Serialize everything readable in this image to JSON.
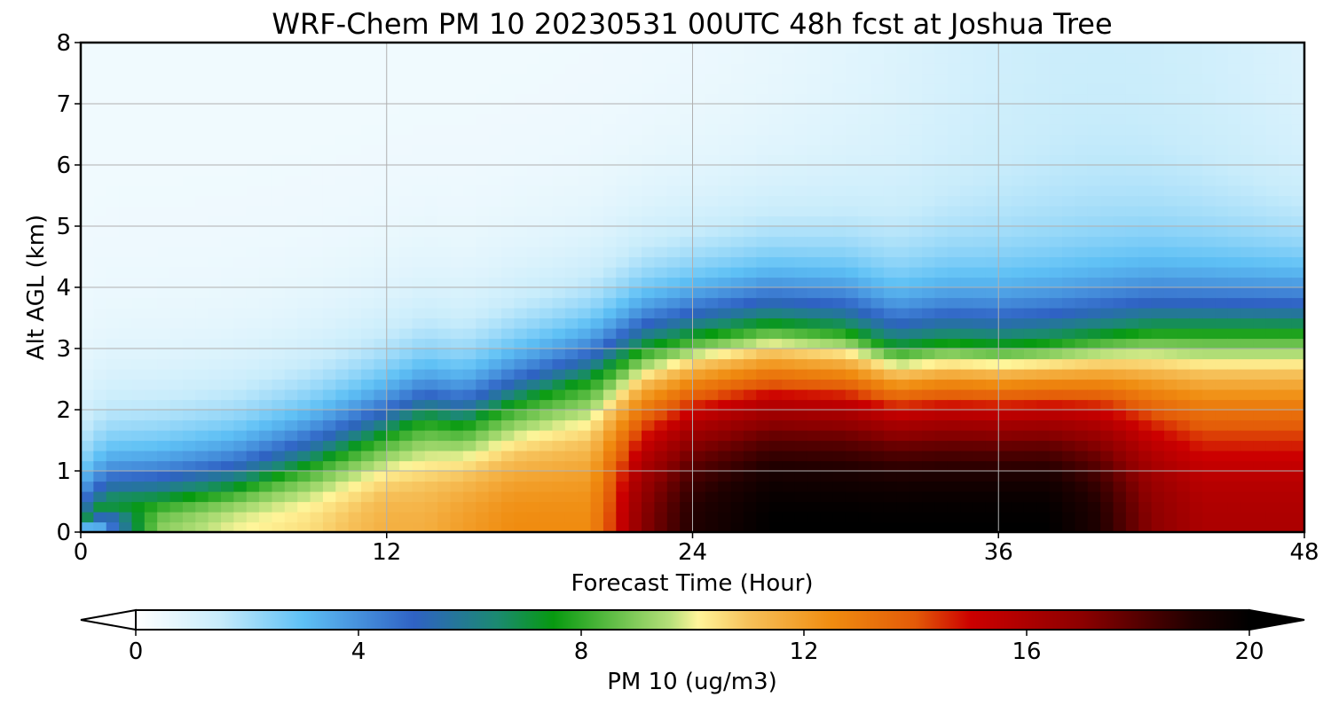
{
  "chart_data": {
    "type": "heatmap",
    "title": "WRF-Chem PM 10  20230531 00UTC 48h fcst at Joshua Tree",
    "xlabel": "Forecast Time (Hour)",
    "ylabel": "Alt AGL (km)",
    "xlim": [
      0,
      48
    ],
    "ylim": [
      0,
      8
    ],
    "xticks": [
      "0",
      "12",
      "24",
      "36",
      "48"
    ],
    "yticks": [
      "0",
      "1",
      "2",
      "3",
      "4",
      "5",
      "6",
      "7",
      "8"
    ],
    "grid": true,
    "colorbar": {
      "label": "PM 10  (ug/m3)",
      "range": [
        0,
        20
      ],
      "ticks": [
        "0",
        "4",
        "8",
        "12",
        "16",
        "20"
      ],
      "extend": "both",
      "stops": [
        {
          "v": 0,
          "c": "#ffffff"
        },
        {
          "v": 1.5,
          "c": "#c8ecfb"
        },
        {
          "v": 3,
          "c": "#5ec0f5"
        },
        {
          "v": 5,
          "c": "#2f62c4"
        },
        {
          "v": 6.5,
          "c": "#1b8a70"
        },
        {
          "v": 7.5,
          "c": "#079a10"
        },
        {
          "v": 9.6,
          "c": "#b6e07a"
        },
        {
          "v": 10.1,
          "c": "#fff59a"
        },
        {
          "v": 11,
          "c": "#f6c15a"
        },
        {
          "v": 12.5,
          "c": "#f08c10"
        },
        {
          "v": 14,
          "c": "#e35a08"
        },
        {
          "v": 15,
          "c": "#cc0000"
        },
        {
          "v": 17,
          "c": "#8c0000"
        },
        {
          "v": 19,
          "c": "#200000"
        },
        {
          "v": 20,
          "c": "#000000"
        }
      ]
    },
    "profile": {
      "hours": [
        0,
        1,
        3,
        6,
        9,
        12,
        13.5,
        15,
        17,
        20,
        22,
        24,
        27,
        30,
        32,
        34,
        36,
        38,
        40,
        42,
        44,
        46,
        48
      ],
      "plume_top_km": [
        0.05,
        0.45,
        0.5,
        0.7,
        1.1,
        1.6,
        1.85,
        1.75,
        2.1,
        2.5,
        3.0,
        3.2,
        3.4,
        3.3,
        3.0,
        3.1,
        3.05,
        3.1,
        3.2,
        3.3,
        3.3,
        3.3,
        3.3
      ],
      "peak_pm10": [
        1,
        4,
        9,
        10,
        10.5,
        11.5,
        11.5,
        12,
        12.5,
        12.5,
        17,
        19,
        20,
        20,
        20,
        20,
        20,
        20,
        19,
        17,
        16,
        16,
        16
      ]
    }
  }
}
